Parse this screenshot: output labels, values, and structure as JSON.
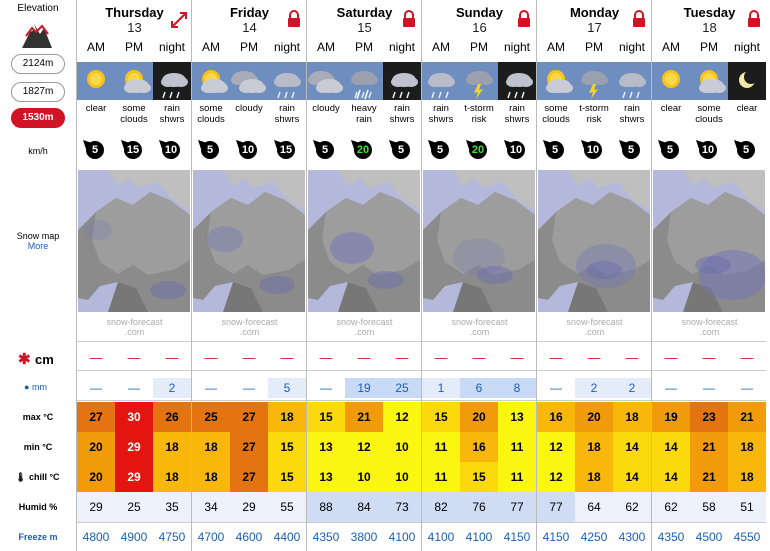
{
  "left": {
    "elevation_title": "Elevation",
    "elevations": [
      "2124m",
      "1827m",
      "1530m"
    ],
    "selected_elevation": "1530m",
    "wind_unit": "km/h",
    "snow_map_title": "Snow map",
    "snow_map_more": "More",
    "snow_unit": "cm",
    "rain_unit": "mm",
    "max_label": "max °C",
    "min_label": "min °C",
    "chill_label": "chill °C",
    "humid_label": "Humid %",
    "freeze_label": "Freeze m"
  },
  "periods": [
    "AM",
    "PM",
    "night"
  ],
  "watermark": "snow-forecast\n.com",
  "colors": {
    "accent": "#d01426",
    "link": "#1b5fb6"
  },
  "days": [
    {
      "name": "Thursday",
      "date": "13",
      "corner_icon": "expand-arrow-icon",
      "slots": [
        {
          "icon": "sun-icon",
          "text": "clear",
          "wind": "5",
          "snow": "—",
          "rain": "—",
          "max": "27",
          "min": "20",
          "chill": "20",
          "humid": "29",
          "freeze": "4800"
        },
        {
          "icon": "sun-cloud-icon",
          "text": "some clouds",
          "wind": "15",
          "snow": "—",
          "rain": "—",
          "max": "30",
          "min": "29",
          "chill": "29",
          "humid": "25",
          "freeze": "4900"
        },
        {
          "icon": "night-rain-icon",
          "text": "rain shwrs",
          "wind": "10",
          "snow": "—",
          "rain": "2",
          "max": "26",
          "min": "18",
          "chill": "18",
          "humid": "35",
          "freeze": "4750"
        }
      ]
    },
    {
      "name": "Friday",
      "date": "14",
      "corner_icon": "lock-icon",
      "slots": [
        {
          "icon": "sun-cloud-icon",
          "text": "some clouds",
          "wind": "5",
          "snow": "—",
          "rain": "—",
          "max": "25",
          "min": "18",
          "chill": "18",
          "humid": "34",
          "freeze": "4700"
        },
        {
          "icon": "cloud-icon",
          "text": "cloudy",
          "wind": "10",
          "snow": "—",
          "rain": "—",
          "max": "27",
          "min": "27",
          "chill": "27",
          "humid": "29",
          "freeze": "4600"
        },
        {
          "icon": "rain-icon",
          "text": "rain shwrs",
          "wind": "15",
          "snow": "—",
          "rain": "5",
          "max": "18",
          "min": "15",
          "chill": "15",
          "humid": "55",
          "freeze": "4400"
        }
      ]
    },
    {
      "name": "Saturday",
      "date": "15",
      "corner_icon": "lock-icon",
      "slots": [
        {
          "icon": "cloud-icon",
          "text": "cloudy",
          "wind": "5",
          "snow": "—",
          "rain": "—",
          "max": "15",
          "min": "13",
          "chill": "13",
          "humid": "88",
          "freeze": "4350"
        },
        {
          "icon": "heavy-rain-icon",
          "text": "heavy rain",
          "wind": "20",
          "snow": "—",
          "rain": "19",
          "max": "21",
          "min": "12",
          "chill": "10",
          "humid": "84",
          "freeze": "3800"
        },
        {
          "icon": "night-rain-icon",
          "text": "rain shwrs",
          "wind": "5",
          "snow": "—",
          "rain": "25",
          "max": "12",
          "min": "10",
          "chill": "10",
          "humid": "73",
          "freeze": "4100"
        }
      ]
    },
    {
      "name": "Sunday",
      "date": "16",
      "corner_icon": "lock-icon",
      "slots": [
        {
          "icon": "rain-icon",
          "text": "rain shwrs",
          "wind": "5",
          "snow": "—",
          "rain": "1",
          "max": "15",
          "min": "11",
          "chill": "11",
          "humid": "82",
          "freeze": "4100"
        },
        {
          "icon": "storm-icon",
          "text": "t-storm risk",
          "wind": "20",
          "snow": "—",
          "rain": "6",
          "max": "20",
          "min": "16",
          "chill": "15",
          "humid": "76",
          "freeze": "4100"
        },
        {
          "icon": "night-rain-icon",
          "text": "rain shwrs",
          "wind": "10",
          "snow": "—",
          "rain": "8",
          "max": "13",
          "min": "11",
          "chill": "11",
          "humid": "77",
          "freeze": "4150"
        }
      ]
    },
    {
      "name": "Monday",
      "date": "17",
      "corner_icon": "lock-icon",
      "slots": [
        {
          "icon": "sun-cloud-icon",
          "text": "some clouds",
          "wind": "5",
          "snow": "—",
          "rain": "—",
          "max": "16",
          "min": "12",
          "chill": "12",
          "humid": "77",
          "freeze": "4150"
        },
        {
          "icon": "storm-icon",
          "text": "t-storm risk",
          "wind": "10",
          "snow": "—",
          "rain": "2",
          "max": "20",
          "min": "18",
          "chill": "18",
          "humid": "64",
          "freeze": "4250"
        },
        {
          "icon": "rain-icon",
          "text": "rain shwrs",
          "wind": "5",
          "snow": "—",
          "rain": "2",
          "max": "18",
          "min": "14",
          "chill": "14",
          "humid": "62",
          "freeze": "4300"
        }
      ]
    },
    {
      "name": "Tuesday",
      "date": "18",
      "corner_icon": "lock-icon",
      "slots": [
        {
          "icon": "sun-icon",
          "text": "clear",
          "wind": "5",
          "snow": "—",
          "rain": "—",
          "max": "19",
          "min": "14",
          "chill": "14",
          "humid": "62",
          "freeze": "4350"
        },
        {
          "icon": "sun-cloud-icon",
          "text": "some clouds",
          "wind": "10",
          "snow": "—",
          "rain": "—",
          "max": "23",
          "min": "21",
          "chill": "21",
          "humid": "58",
          "freeze": "4500"
        },
        {
          "icon": "moon-icon",
          "text": "clear",
          "wind": "5",
          "snow": "—",
          "rain": "—",
          "max": "21",
          "min": "18",
          "chill": "18",
          "humid": "51",
          "freeze": "4550"
        }
      ]
    }
  ]
}
